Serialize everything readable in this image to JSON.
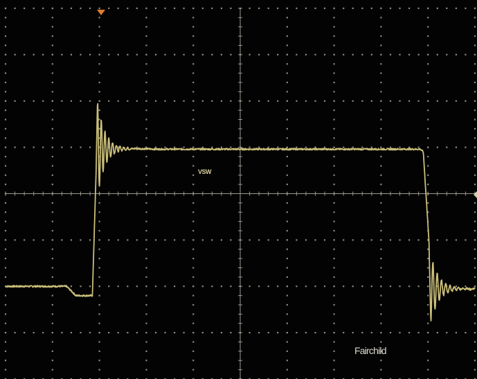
{
  "chart_data": {
    "type": "line",
    "title": "",
    "xlabel": "",
    "ylabel": "",
    "divisions": {
      "x": 10,
      "y": 8
    },
    "xlim": [
      0,
      10
    ],
    "ylim": [
      -4,
      4
    ],
    "grid": true,
    "series": [
      {
        "name": "VSW",
        "color": "#cbbf7a",
        "x": [
          0,
          0.8,
          1.3,
          1.5,
          1.85,
          1.93,
          1.96,
          2.03,
          2.6,
          3.2,
          4.5,
          6.0,
          7.5,
          8.2,
          8.84,
          8.9,
          9.02,
          9.06,
          9.14,
          9.3,
          10
        ],
        "y": [
          -2.0,
          -2.0,
          -2.0,
          -2.2,
          -2.2,
          0.5,
          2.05,
          1.2,
          0.98,
          0.96,
          0.96,
          0.96,
          0.96,
          0.96,
          0.96,
          0.9,
          -1.0,
          -2.8,
          -2.0,
          -2.2,
          -2.05
        ]
      }
    ],
    "annotations": [
      {
        "text": "VSW"
      }
    ]
  },
  "watermark": "Fairchild",
  "colors": {
    "background": "#030303",
    "grid": "#8a8a80",
    "trace": "#cbbf7a",
    "marker": "#e07b2a"
  }
}
